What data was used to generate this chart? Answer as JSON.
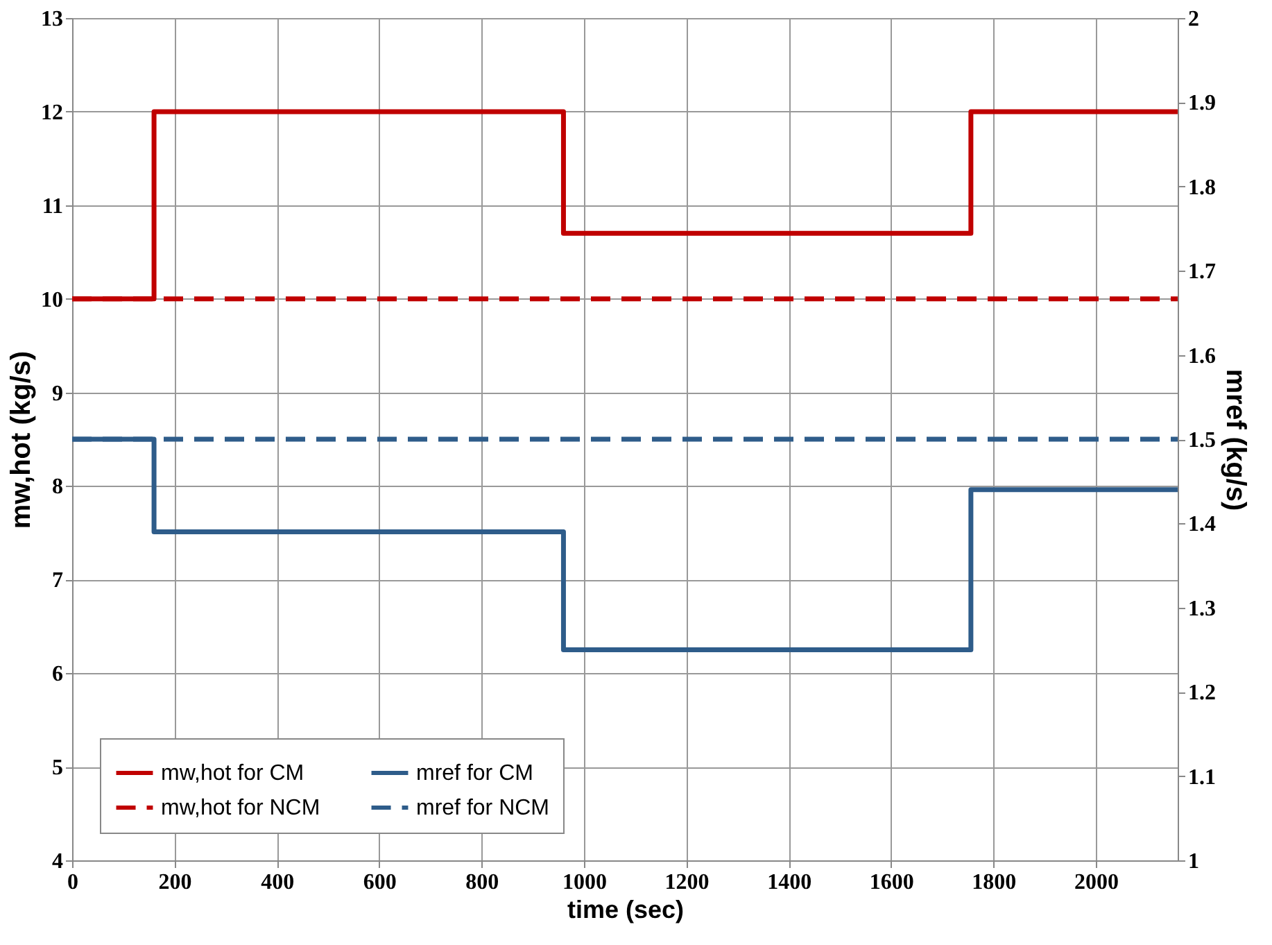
{
  "chart_data": {
    "type": "step",
    "xlabel": "time (sec)",
    "ylabel": "mw,hot (kg/s)",
    "y2label": "mref (kg/s)",
    "xlim": [
      0,
      2160
    ],
    "xticks": [
      0,
      200,
      400,
      600,
      800,
      1000,
      1200,
      1400,
      1600,
      1800,
      2000
    ],
    "ylim": [
      4,
      13
    ],
    "yticks": [
      4,
      5,
      6,
      7,
      8,
      9,
      10,
      11,
      12,
      13
    ],
    "y2lim": [
      1,
      2
    ],
    "y2ticks": [
      1,
      1.1,
      1.2,
      1.3,
      1.4,
      1.5,
      1.6,
      1.7,
      1.8,
      1.9,
      2
    ],
    "grid": true,
    "legend": "bottom",
    "series": [
      {
        "name": "mw,hot for CM",
        "color": "#c00000",
        "line_style": "solid",
        "x": [
          0,
          160,
          960,
          1756,
          2160
        ],
        "values": [
          10,
          12,
          10.7,
          12,
          12
        ]
      },
      {
        "name": "mw,hot for NCM",
        "color": "#c00000",
        "line_style": "dashed",
        "x": [
          0,
          2160
        ],
        "values": [
          10,
          10
        ]
      },
      {
        "name": "mref for CM",
        "color": "#2e5c8a",
        "line_style": "solid",
        "axis": "y2",
        "x": [
          0,
          160,
          960,
          1756,
          2160
        ],
        "values": [
          1.5,
          1.39,
          1.25,
          1.44,
          1.44
        ]
      },
      {
        "name": "mref for NCM",
        "color": "#2e5c8a",
        "line_style": "dashed",
        "axis": "y2",
        "x": [
          0,
          2160
        ],
        "values": [
          1.5,
          1.5
        ]
      }
    ]
  }
}
